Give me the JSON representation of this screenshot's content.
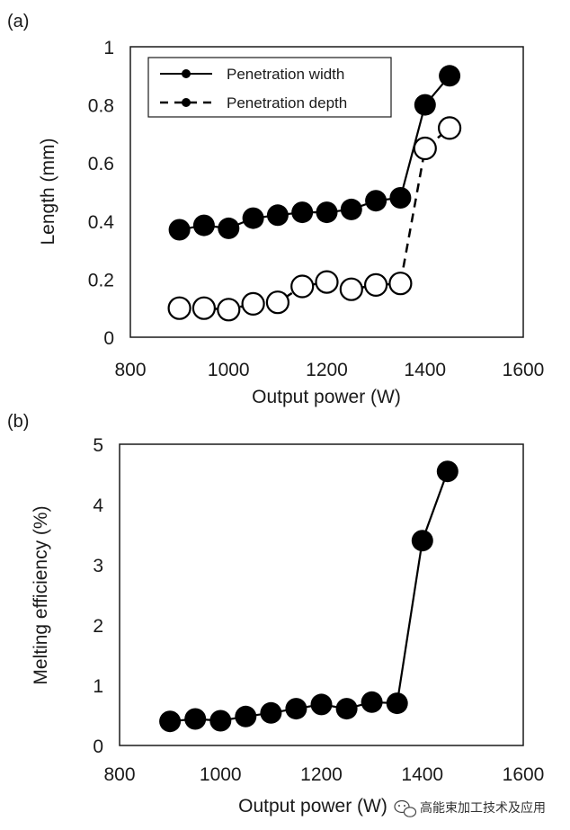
{
  "watermark": {
    "text": "高能束加工技术及应用",
    "icon": "wechat-icon"
  },
  "colors": {
    "marker": "#000000",
    "line": "#000000",
    "open_fill": "#ffffff",
    "background": "#ffffff"
  },
  "chart_data": [
    {
      "panel_label": "(a)",
      "type": "line",
      "xlabel": "Output power (W)",
      "ylabel": "Length (mm)",
      "xlim": [
        800,
        1600
      ],
      "ylim": [
        0,
        1
      ],
      "xticks": [
        "800",
        "1000",
        "1200",
        "1400",
        "1600"
      ],
      "yticks": [
        "0",
        "0.2",
        "0.4",
        "0.6",
        "0.8",
        "1"
      ],
      "grid": false,
      "legend_position": "top",
      "x": [
        900,
        950,
        1000,
        1050,
        1100,
        1150,
        1200,
        1250,
        1300,
        1350,
        1400,
        1450
      ],
      "series": [
        {
          "name": "Penetration width",
          "marker": "filled",
          "line": "solid",
          "values": [
            0.37,
            0.385,
            0.375,
            0.41,
            0.42,
            0.43,
            0.43,
            0.44,
            0.47,
            0.48,
            0.8,
            0.9
          ]
        },
        {
          "name": "Penetration depth",
          "marker": "open",
          "line": "dashed",
          "values": [
            0.1,
            0.1,
            0.095,
            0.115,
            0.12,
            0.175,
            0.19,
            0.165,
            0.18,
            0.185,
            0.65,
            0.72
          ]
        }
      ]
    },
    {
      "panel_label": "(b)",
      "type": "line",
      "xlabel": "Output power (W)",
      "ylabel": "Melting efficiency (%)",
      "xlim": [
        800,
        1600
      ],
      "ylim": [
        0,
        5
      ],
      "xticks": [
        "800",
        "1000",
        "1200",
        "1400",
        "1600"
      ],
      "yticks": [
        "0",
        "1",
        "2",
        "3",
        "4",
        "5"
      ],
      "grid": false,
      "legend_position": "none",
      "x": [
        900,
        950,
        1000,
        1050,
        1100,
        1150,
        1200,
        1250,
        1300,
        1350,
        1400,
        1450
      ],
      "series": [
        {
          "name": "",
          "marker": "filled",
          "line": "solid",
          "values": [
            0.4,
            0.44,
            0.41,
            0.48,
            0.54,
            0.61,
            0.68,
            0.61,
            0.72,
            0.7,
            3.4,
            4.55
          ]
        }
      ]
    }
  ]
}
